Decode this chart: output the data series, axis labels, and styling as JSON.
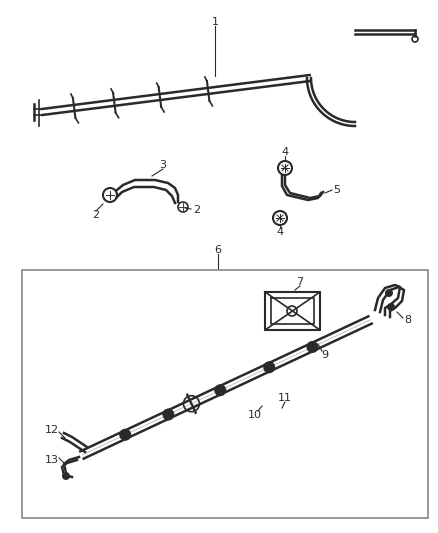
{
  "bg_color": "#ffffff",
  "line_color": "#2a2a2a",
  "label_color": "#2a2a2a",
  "box_edge_color": "#888888",
  "fig_width": 4.38,
  "fig_height": 5.33,
  "dpi": 100
}
